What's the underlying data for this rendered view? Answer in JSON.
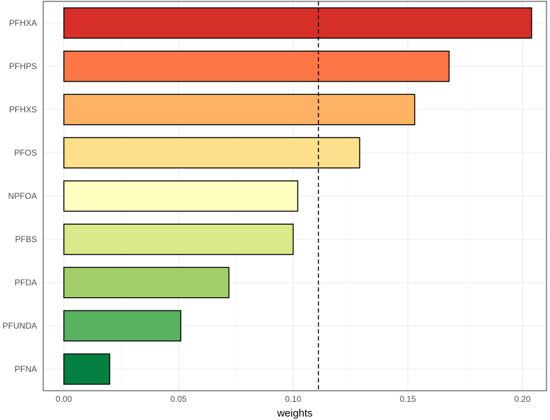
{
  "chart_data": {
    "type": "bar",
    "orientation": "horizontal",
    "categories": [
      "PFHXA",
      "PFHPS",
      "PFHXS",
      "PFOS",
      "NPFOA",
      "PFBS",
      "PFDA",
      "PFUNDA",
      "PFNA"
    ],
    "values": [
      0.204,
      0.168,
      0.153,
      0.129,
      0.102,
      0.1,
      0.072,
      0.051,
      0.02
    ],
    "colors": [
      "#D62F27",
      "#FC7646",
      "#FDB264",
      "#FEDF8B",
      "#FFFFBF",
      "#DAE98A",
      "#A2CF69",
      "#59B25F",
      "#048141"
    ],
    "reference_line": {
      "value": 0.111,
      "style": "dashed"
    },
    "title": "",
    "xlabel": "weights",
    "ylabel": "",
    "xlim": [
      -0.009,
      0.2105
    ],
    "xticks": [
      0.0,
      0.05,
      0.1,
      0.15,
      0.2
    ],
    "xtick_labels": [
      "0.00",
      "0.05",
      "0.10",
      "0.15",
      "0.20"
    ],
    "grid": true,
    "legend": "none"
  }
}
